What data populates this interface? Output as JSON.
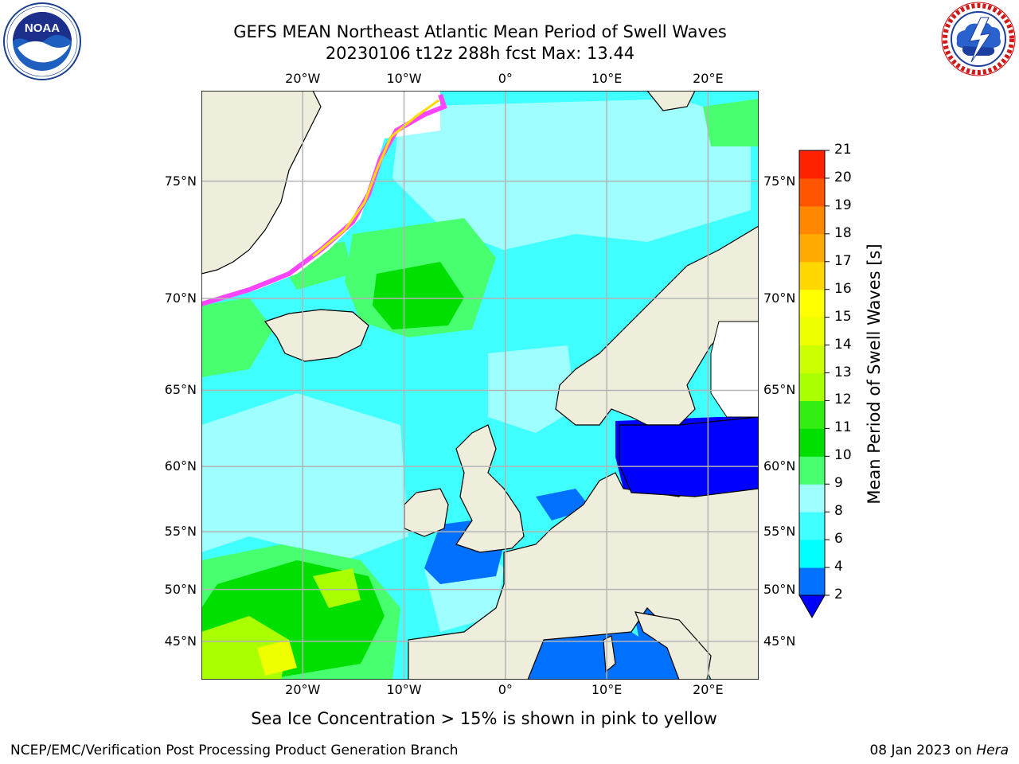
{
  "title": {
    "line1": "GEFS MEAN Northeast Atlantic Mean Period of Swell Waves",
    "line2": "20230106 t12z 288h fcst   Max: 13.44"
  },
  "logos": {
    "left": {
      "icon": "noaa-logo",
      "text": "NOAA",
      "ring_text": "NATIONAL OCEANIC AND ATMOSPHERIC ADMINISTRATION · U.S. DEPARTMENT OF COMMERCE"
    },
    "right": {
      "icon": "nws-logo",
      "ring_text": "NATIONAL WEATHER SERVICE"
    }
  },
  "map": {
    "projection": "lat-lon",
    "lon_range": [
      -30,
      25
    ],
    "lat_range": [
      41,
      78
    ],
    "lon_ticks": [
      {
        "value": -20,
        "label": "20°W"
      },
      {
        "value": -10,
        "label": "10°W"
      },
      {
        "value": 0,
        "label": "0°"
      },
      {
        "value": 10,
        "label": "10°E"
      },
      {
        "value": 20,
        "label": "20°E"
      }
    ],
    "lat_ticks": [
      {
        "value": 75,
        "label": "75°N"
      },
      {
        "value": 70,
        "label": "70°N"
      },
      {
        "value": 65,
        "label": "65°N"
      },
      {
        "value": 60,
        "label": "60°N"
      },
      {
        "value": 55,
        "label": "55°N"
      },
      {
        "value": 50,
        "label": "50°N"
      },
      {
        "value": 45,
        "label": "45°N"
      }
    ],
    "colors": {
      "land": "#efeedc",
      "gridline": "#b3b3b3",
      "coast": "#000000",
      "ice": "#ffffff"
    }
  },
  "colorbar": {
    "label": "Mean Period of Swell Waves [s]",
    "extend": "min",
    "under_color": "#0000ff",
    "levels": [
      2,
      4,
      6,
      8,
      9,
      10,
      11,
      12,
      13,
      14,
      15,
      16,
      17,
      18,
      19,
      20,
      21
    ],
    "colors": [
      "#0070ff",
      "#00ffff",
      "#40ffff",
      "#9fffff",
      "#48ff70",
      "#00e000",
      "#33ee11",
      "#aaff00",
      "#ccff00",
      "#eeff00",
      "#ffff00",
      "#ffd700",
      "#ffaa00",
      "#ff8800",
      "#ff5500",
      "#ff2200"
    ]
  },
  "caption": "Sea Ice Concentration > 15% is shown in pink to yellow",
  "footer": {
    "left": "NCEP/EMC/Verification Post Processing Product Generation Branch",
    "right_date": "08 Jan 2023 on ",
    "right_machine": "Hera"
  }
}
